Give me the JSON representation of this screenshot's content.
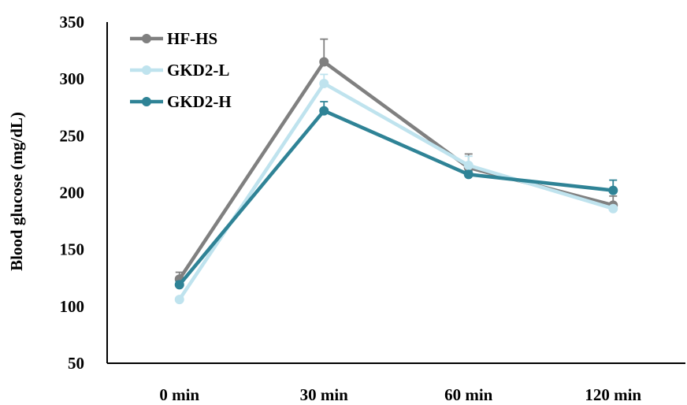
{
  "chart_data": {
    "type": "line",
    "title": "",
    "xlabel": "",
    "ylabel": "Blood glucose (mg/dL)",
    "categories": [
      "0 min",
      "30 min",
      "60 min",
      "120 min"
    ],
    "ylim": [
      50,
      350
    ],
    "yticks": [
      50,
      100,
      150,
      200,
      250,
      300,
      350
    ],
    "grid": false,
    "legend_position": "top-left",
    "series": [
      {
        "name": "HF-HS",
        "color": "#808080",
        "values": [
          124,
          315,
          222,
          189
        ],
        "errors": [
          6,
          20,
          12,
          8
        ]
      },
      {
        "name": "GKD2-L",
        "color": "#bfe3ee",
        "values": [
          106,
          296,
          224,
          186
        ],
        "errors": [
          0,
          8,
          8,
          0
        ]
      },
      {
        "name": "GKD2-H",
        "color": "#2f8396",
        "values": [
          119,
          272,
          216,
          202
        ],
        "errors": [
          3,
          8,
          3,
          9
        ]
      }
    ]
  }
}
